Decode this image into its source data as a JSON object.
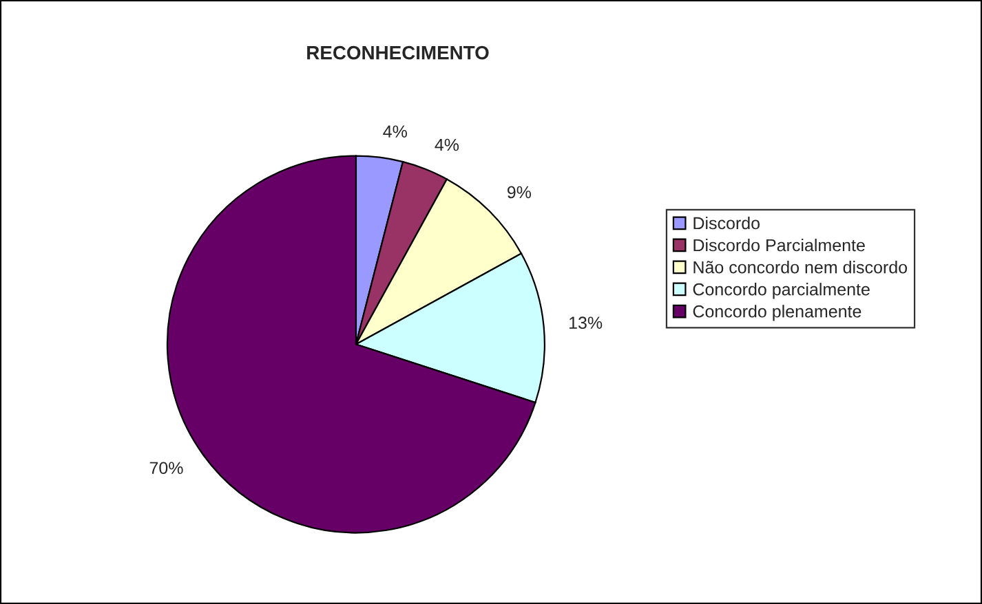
{
  "chart_data": {
    "type": "pie",
    "title": "RECONHECIMENTO",
    "categories": [
      "Discordo",
      "Discordo Parcialmente",
      "Não concordo nem discordo",
      "Concordo parcialmente",
      "Concordo plenamente"
    ],
    "values": [
      4,
      4,
      9,
      13,
      70
    ],
    "colors": [
      "#9999ff",
      "#993366",
      "#ffffcc",
      "#ccffff",
      "#660066"
    ],
    "value_labels": [
      "4%",
      "4%",
      "9%",
      "13%",
      "70%"
    ],
    "legend": "right"
  }
}
